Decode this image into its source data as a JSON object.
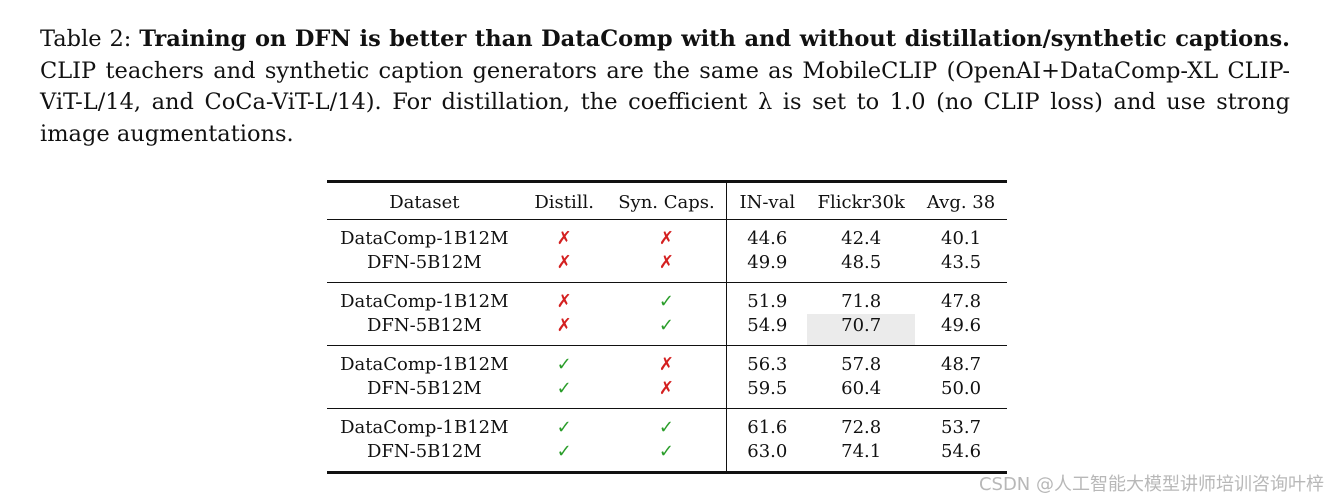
{
  "caption": {
    "label": "Table 2:",
    "bold": "Training on DFN is better than DataComp with and without distillation/synthetic captions.",
    "text": "CLIP teachers and synthetic caption generators are the same as MobileCLIP (OpenAI+DataComp-XL CLIP-ViT-L/14, and CoCa-ViT-L/14). For distillation, the coefficient λ is set to 1.0 (no CLIP loss) and use strong image augmentations."
  },
  "table": {
    "headers": [
      "Dataset",
      "Distill.",
      "Syn. Caps.",
      "IN-val",
      "Flickr30k",
      "Avg. 38"
    ],
    "groups": [
      {
        "rows": [
          {
            "dataset": "DataComp-1B12M",
            "distill": "✗",
            "syn": "✗",
            "in_val": "44.6",
            "flickr": "42.4",
            "avg": "40.1"
          },
          {
            "dataset": "DFN-5B12M",
            "distill": "✗",
            "syn": "✗",
            "in_val": "49.9",
            "flickr": "48.5",
            "avg": "43.5"
          }
        ]
      },
      {
        "rows": [
          {
            "dataset": "DataComp-1B12M",
            "distill": "✗",
            "syn": "✓",
            "in_val": "51.9",
            "flickr": "71.8",
            "avg": "47.8"
          },
          {
            "dataset": "DFN-5B12M",
            "distill": "✗",
            "syn": "✓",
            "in_val": "54.9",
            "flickr": "70.7",
            "avg": "49.6"
          }
        ]
      },
      {
        "rows": [
          {
            "dataset": "DataComp-1B12M",
            "distill": "✓",
            "syn": "✗",
            "in_val": "56.3",
            "flickr": "57.8",
            "avg": "48.7"
          },
          {
            "dataset": "DFN-5B12M",
            "distill": "✓",
            "syn": "✗",
            "in_val": "59.5",
            "flickr": "60.4",
            "avg": "50.0"
          }
        ]
      },
      {
        "rows": [
          {
            "dataset": "DataComp-1B12M",
            "distill": "✓",
            "syn": "✓",
            "in_val": "61.6",
            "flickr": "72.8",
            "avg": "53.7"
          },
          {
            "dataset": "DFN-5B12M",
            "distill": "✓",
            "syn": "✓",
            "in_val": "63.0",
            "flickr": "74.1",
            "avg": "54.6"
          }
        ]
      }
    ],
    "highlight": {
      "group": 1,
      "row": 1,
      "column": "flickr"
    }
  },
  "colors": {
    "cross": "#d42020",
    "check": "#2a9d2a",
    "highlight": "#ebebeb"
  },
  "watermark": "CSDN @人工智能大模型讲师培训咨询叶梓"
}
